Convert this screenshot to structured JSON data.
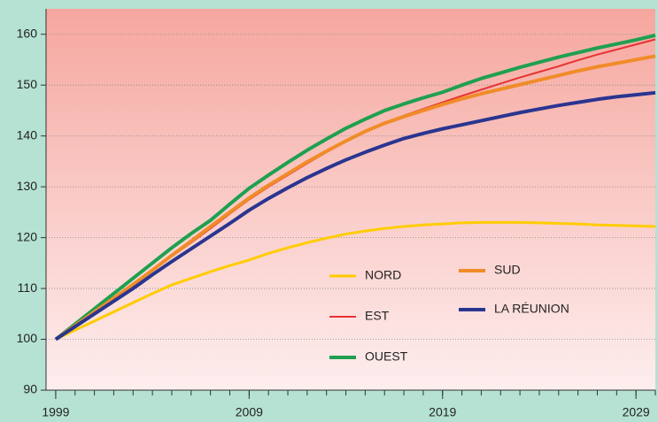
{
  "chart_data": {
    "type": "line",
    "x": [
      1999,
      2000,
      2001,
      2002,
      2003,
      2004,
      2005,
      2006,
      2007,
      2008,
      2009,
      2010,
      2011,
      2012,
      2013,
      2014,
      2015,
      2016,
      2017,
      2018,
      2019,
      2020,
      2021,
      2022,
      2023,
      2024,
      2025,
      2026,
      2027,
      2028,
      2029,
      2030
    ],
    "xlim": [
      1998.5,
      2030
    ],
    "xticks": [
      1999,
      2009,
      2019,
      2029
    ],
    "ylim": [
      90,
      165
    ],
    "yticks": [
      90,
      100,
      110,
      120,
      130,
      140,
      150,
      160
    ],
    "grid": true,
    "series": [
      {
        "name": "NORD",
        "color": "#ffcc00",
        "values": [
          100,
          101.8,
          103.6,
          105.4,
          107.2,
          109,
          110.7,
          112,
          113.3,
          114.5,
          115.6,
          116.9,
          118,
          119,
          119.9,
          120.7,
          121.3,
          121.8,
          122.2,
          122.5,
          122.7,
          122.9,
          123,
          123,
          123,
          122.9,
          122.8,
          122.7,
          122.5,
          122.4,
          122.3,
          122.2
        ]
      },
      {
        "name": "EST",
        "color": "#e83232",
        "values": [
          100,
          102.7,
          105.4,
          108.1,
          110.8,
          113.6,
          116.3,
          119,
          121.8,
          124.7,
          127.5,
          130,
          132.3,
          134.6,
          136.8,
          138.9,
          140.8,
          142.5,
          144,
          145.3,
          146.6,
          147.9,
          149.1,
          150.3,
          151.5,
          152.6,
          153.7,
          154.9,
          156,
          157,
          158,
          159
        ]
      },
      {
        "name": "OUEST",
        "color": "#1fa050",
        "values": [
          100,
          103,
          106,
          109,
          112,
          115,
          118,
          120.8,
          123.4,
          126.6,
          129.7,
          132.3,
          134.8,
          137.2,
          139.4,
          141.5,
          143.3,
          145,
          146.3,
          147.5,
          148.6,
          150,
          151.3,
          152.4,
          153.5,
          154.5,
          155.5,
          156.4,
          157.3,
          158.1,
          158.9,
          159.8
        ]
      },
      {
        "name": "SUD",
        "color": "#f08c28",
        "values": [
          100,
          102.7,
          105.4,
          108.1,
          110.8,
          113.6,
          116.5,
          119.3,
          122.2,
          125,
          127.8,
          130.3,
          132.6,
          134.9,
          137,
          139,
          140.9,
          142.5,
          143.8,
          145,
          146.2,
          147.3,
          148.3,
          149.2,
          150.1,
          151,
          151.9,
          152.8,
          153.6,
          154.3,
          155,
          155.7
        ]
      },
      {
        "name": "LA RÉUNION",
        "color": "#2a3590",
        "values": [
          100,
          102.5,
          105,
          107.5,
          110,
          112.7,
          115.3,
          117.8,
          120.3,
          122.8,
          125.4,
          127.7,
          129.8,
          131.8,
          133.6,
          135.3,
          136.8,
          138.2,
          139.5,
          140.5,
          141.4,
          142.2,
          143,
          143.8,
          144.6,
          145.3,
          146,
          146.6,
          147.2,
          147.7,
          148.1,
          148.5
        ]
      }
    ]
  }
}
